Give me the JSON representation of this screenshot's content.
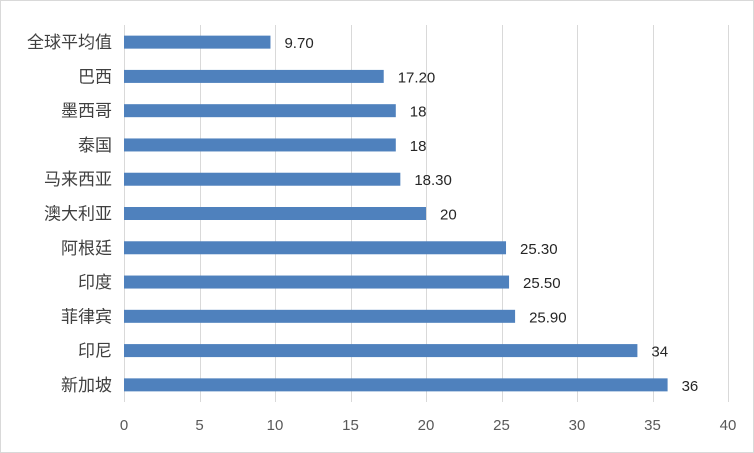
{
  "chart_data": {
    "type": "bar",
    "orientation": "horizontal",
    "categories": [
      "全球平均值",
      "巴西",
      "墨西哥",
      "泰国",
      "马来西亚",
      "澳大利亚",
      "阿根廷",
      "印度",
      "菲律宾",
      "印尼",
      "新加坡"
    ],
    "values": [
      9.7,
      17.2,
      18,
      18,
      18.3,
      20,
      25.3,
      25.5,
      25.9,
      34,
      36
    ],
    "data_labels": [
      "9.70",
      "17.20",
      "18",
      "18",
      "18.30",
      "20",
      "25.30",
      "25.50",
      "25.90",
      "34",
      "36"
    ],
    "x_ticks": [
      0,
      5,
      10,
      15,
      20,
      25,
      30,
      35,
      40
    ],
    "xlim": [
      0,
      40
    ],
    "grid": "vertical",
    "legend": "none",
    "bar_color": "#4f81bd",
    "grid_color": "#d9d9d9"
  }
}
